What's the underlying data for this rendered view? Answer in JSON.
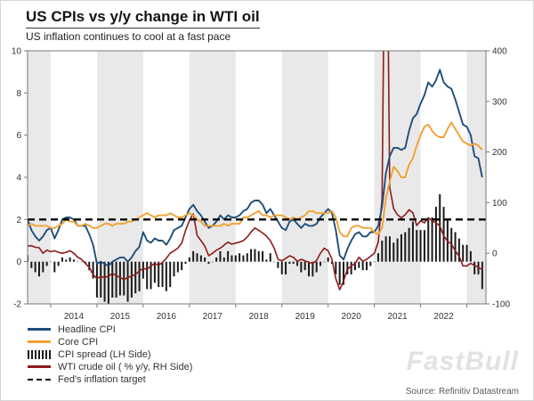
{
  "header": {
    "title": "US CPIs vs y/y change in WTI oil",
    "subtitle": "US inflation continues to cool at a fast pace"
  },
  "watermark": "FastBull",
  "source": "Source: Refinitiv Datastream",
  "legend": {
    "items": [
      {
        "label": "Headline CPI",
        "swatch": "line",
        "color": "#1f4e79"
      },
      {
        "label": "Core CPI",
        "swatch": "line",
        "color": "#f0a232"
      },
      {
        "label": "CPI spread (LH Side)",
        "swatch": "bars",
        "color": "#1a1a1a"
      },
      {
        "label": "WTI crude oil ( % y/y, RH Side)",
        "swatch": "line",
        "color": "#8e1b1b"
      },
      {
        "label": "Fed's inflation target",
        "swatch": "dashed",
        "color": "#000000"
      }
    ]
  },
  "chart_data": {
    "type": "line+bar",
    "x_start": 2013.5,
    "x_frequency": "monthly",
    "x_labels": [
      "2014",
      "2015",
      "2016",
      "2017",
      "2018",
      "2019",
      "2020",
      "2021",
      "2022"
    ],
    "axes": {
      "left": {
        "min": -2,
        "max": 10,
        "ticks": [
          -2,
          0,
          2,
          4,
          6,
          8,
          10
        ]
      },
      "right": {
        "min": -100,
        "max": 400,
        "ticks": [
          -100,
          0,
          100,
          200,
          300,
          400
        ]
      }
    },
    "target_line": {
      "value": 2,
      "label": "Fed's inflation target",
      "color": "#000000"
    },
    "band_color": "#e9e9e9",
    "series": [
      {
        "name": "Headline CPI",
        "type": "line",
        "axis": "left",
        "color": "#1f4e79",
        "values": [
          2.0,
          1.5,
          1.2,
          1.0,
          1.2,
          1.5,
          1.6,
          1.1,
          1.5,
          2.0,
          2.1,
          2.1,
          2.0,
          1.7,
          1.7,
          1.7,
          1.3,
          0.8,
          -0.1,
          0.0,
          -0.1,
          -0.2,
          0.0,
          0.1,
          0.2,
          0.2,
          0.0,
          0.2,
          0.5,
          0.7,
          1.4,
          1.0,
          0.9,
          1.1,
          1.0,
          1.0,
          0.8,
          1.1,
          1.5,
          1.6,
          1.7,
          2.1,
          2.5,
          2.7,
          2.4,
          2.2,
          1.9,
          1.6,
          1.7,
          1.9,
          2.2,
          2.0,
          2.2,
          2.1,
          2.1,
          2.2,
          2.4,
          2.5,
          2.8,
          2.9,
          2.9,
          2.7,
          2.3,
          2.5,
          2.2,
          1.9,
          1.6,
          1.5,
          1.9,
          2.0,
          1.8,
          1.6,
          1.8,
          1.7,
          1.7,
          1.8,
          2.1,
          2.3,
          2.5,
          2.3,
          1.5,
          0.3,
          0.1,
          0.6,
          1.0,
          1.3,
          1.4,
          1.2,
          1.2,
          1.4,
          1.4,
          1.7,
          2.6,
          4.2,
          5.0,
          5.4,
          5.4,
          5.3,
          5.4,
          6.2,
          6.8,
          7.0,
          7.5,
          7.9,
          8.5,
          8.3,
          8.6,
          9.1,
          8.5,
          8.3,
          8.2,
          7.7,
          7.1,
          6.5,
          6.4,
          6.0,
          5.0,
          4.9,
          4.0
        ]
      },
      {
        "name": "Core CPI",
        "type": "line",
        "axis": "left",
        "color": "#f0a232",
        "values": [
          1.7,
          1.8,
          1.7,
          1.7,
          1.7,
          1.7,
          1.6,
          1.6,
          1.7,
          1.8,
          2.0,
          1.9,
          1.9,
          1.7,
          1.7,
          1.8,
          1.7,
          1.6,
          1.6,
          1.7,
          1.8,
          1.8,
          1.7,
          1.8,
          1.8,
          1.8,
          1.9,
          1.9,
          2.0,
          2.1,
          2.2,
          2.3,
          2.2,
          2.1,
          2.2,
          2.2,
          2.2,
          2.3,
          2.2,
          2.1,
          2.1,
          2.2,
          2.3,
          2.2,
          2.0,
          1.9,
          1.7,
          1.7,
          1.7,
          1.7,
          1.7,
          1.8,
          1.7,
          1.8,
          1.8,
          1.8,
          2.1,
          2.1,
          2.2,
          2.3,
          2.4,
          2.2,
          2.2,
          2.1,
          2.2,
          2.2,
          2.2,
          2.1,
          2.0,
          2.1,
          2.0,
          2.1,
          2.2,
          2.4,
          2.4,
          2.3,
          2.3,
          2.3,
          2.3,
          2.4,
          2.1,
          1.4,
          1.2,
          1.2,
          1.6,
          1.7,
          1.7,
          1.6,
          1.6,
          1.6,
          1.4,
          1.3,
          1.6,
          3.0,
          3.8,
          4.5,
          4.3,
          4.0,
          4.0,
          4.6,
          4.9,
          5.5,
          6.0,
          6.4,
          6.5,
          6.2,
          6.0,
          5.9,
          5.9,
          6.3,
          6.6,
          6.3,
          6.0,
          5.7,
          5.6,
          5.5,
          5.6,
          5.5,
          5.3
        ]
      },
      {
        "name": "CPI spread",
        "type": "bar",
        "axis": "left",
        "color": "#1a1a1a",
        "values": [
          0.3,
          -0.3,
          -0.5,
          -0.7,
          -0.5,
          -0.2,
          0.0,
          -0.5,
          -0.2,
          0.2,
          0.1,
          0.2,
          0.1,
          0.0,
          0.0,
          -0.1,
          -0.4,
          -0.8,
          -1.7,
          -1.7,
          -1.9,
          -2.0,
          -1.7,
          -1.7,
          -1.6,
          -1.6,
          -1.9,
          -1.7,
          -1.5,
          -1.4,
          -0.8,
          -1.3,
          -1.3,
          -1.0,
          -1.2,
          -1.2,
          -1.4,
          -1.2,
          -0.7,
          -0.5,
          -0.4,
          -0.1,
          0.2,
          0.5,
          0.4,
          0.3,
          0.2,
          -0.1,
          0.0,
          0.2,
          0.5,
          0.2,
          0.5,
          0.3,
          0.3,
          0.4,
          0.3,
          0.4,
          0.6,
          0.6,
          0.5,
          0.5,
          0.1,
          0.4,
          0.0,
          -0.3,
          -0.6,
          -0.6,
          -0.1,
          -0.1,
          -0.2,
          -0.5,
          -0.4,
          -0.7,
          -0.7,
          -0.5,
          -0.2,
          0.0,
          0.2,
          -0.1,
          -0.6,
          -1.1,
          -1.1,
          -0.6,
          -0.6,
          -0.4,
          -0.3,
          -0.4,
          -0.4,
          -0.2,
          0.0,
          0.4,
          1.0,
          1.2,
          1.2,
          0.9,
          1.1,
          1.3,
          1.4,
          1.6,
          1.9,
          1.5,
          1.5,
          1.5,
          2.0,
          2.1,
          2.6,
          3.2,
          2.6,
          2.0,
          1.6,
          1.4,
          1.1,
          0.8,
          0.8,
          0.5,
          -0.6,
          -0.6,
          -1.3
        ]
      },
      {
        "name": "WTI crude oil",
        "type": "line",
        "axis": "right",
        "color": "#8e1b1b",
        "values": [
          14,
          15,
          12,
          11,
          0,
          6,
          3,
          5,
          2,
          0,
          2,
          5,
          0,
          -8,
          -12,
          -20,
          -28,
          -42,
          -50,
          -46,
          -48,
          -45,
          -40,
          -44,
          -48,
          -52,
          -48,
          -45,
          -42,
          -35,
          -30,
          -32,
          -25,
          -20,
          -24,
          -18,
          -10,
          0,
          5,
          10,
          20,
          45,
          65,
          78,
          35,
          25,
          14,
          -5,
          0,
          6,
          10,
          16,
          22,
          18,
          20,
          22,
          25,
          32,
          42,
          50,
          45,
          40,
          34,
          25,
          10,
          -12,
          -15,
          -10,
          -5,
          -8,
          -16,
          -12,
          -15,
          -18,
          -20,
          -14,
          0,
          10,
          5,
          -12,
          -50,
          -72,
          -55,
          -32,
          -25,
          -20,
          -8,
          -16,
          -12,
          -6,
          0,
          22,
          108,
          900,
          130,
          88,
          76,
          70,
          76,
          86,
          80,
          55,
          64,
          60,
          70,
          64,
          60,
          54,
          34,
          24,
          18,
          5,
          -6,
          -25,
          -25,
          -20,
          -24,
          -28,
          -32
        ]
      }
    ]
  }
}
